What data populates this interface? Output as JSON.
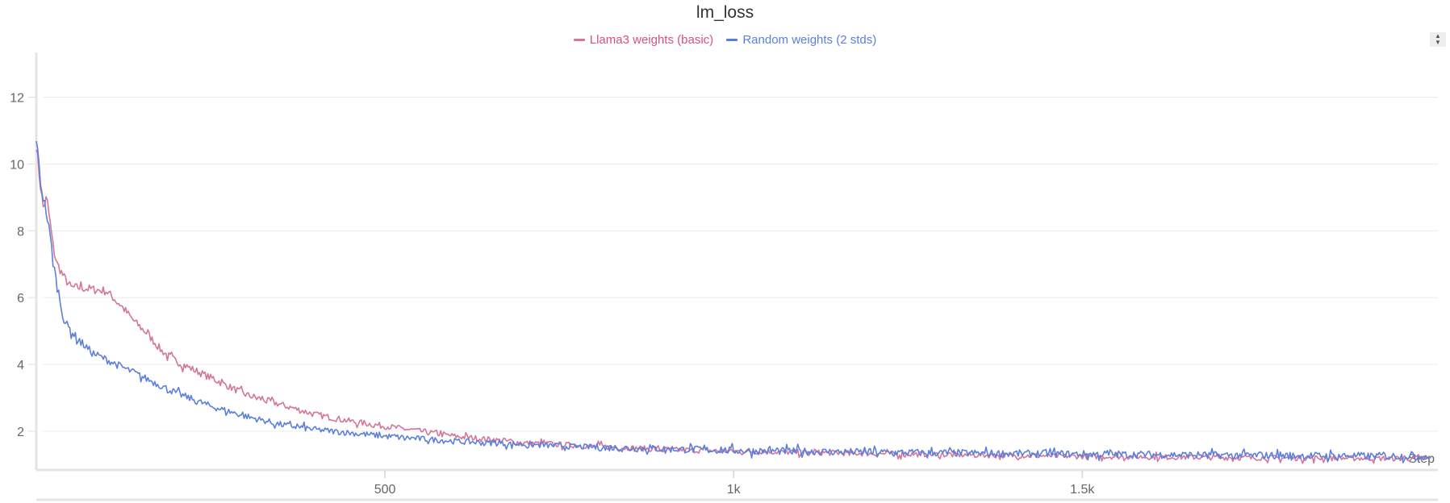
{
  "chart_data": {
    "type": "line",
    "title": "lm_loss",
    "xlabel": "Step",
    "ylabel": "",
    "xlim": [
      0,
      2010
    ],
    "ylim": [
      0.84,
      13.1
    ],
    "x_ticks": [
      500,
      1000,
      1500
    ],
    "x_tick_labels": [
      "500",
      "1k",
      "1.5k"
    ],
    "y_ticks": [
      2,
      4,
      6,
      8,
      10,
      12
    ],
    "y_tick_labels": [
      "2",
      "4",
      "6",
      "8",
      "10",
      "12"
    ],
    "grid": true,
    "legend_placement": "top-center",
    "x": [
      0,
      5,
      10,
      15,
      20,
      25,
      30,
      40,
      50,
      60,
      80,
      100,
      120,
      140,
      160,
      180,
      200,
      250,
      300,
      350,
      400,
      450,
      500,
      600,
      700,
      800,
      900,
      1000,
      1200,
      1400,
      1600,
      1800,
      2000
    ],
    "series": [
      {
        "name": "Llama3 weights (basic)",
        "color": "#d4759a",
        "values": [
          10.6,
          9.5,
          8.7,
          9.0,
          8.2,
          7.4,
          7.0,
          6.6,
          6.3,
          6.3,
          6.25,
          6.2,
          5.8,
          5.3,
          4.9,
          4.4,
          4.1,
          3.6,
          3.1,
          2.8,
          2.5,
          2.3,
          2.15,
          1.85,
          1.65,
          1.55,
          1.45,
          1.4,
          1.33,
          1.27,
          1.23,
          1.2,
          1.18
        ]
      },
      {
        "name": "Random weights (2 stds)",
        "color": "#5b7fdb",
        "values": [
          10.8,
          9.6,
          9.0,
          8.5,
          7.8,
          7.0,
          6.3,
          5.3,
          5.0,
          4.75,
          4.35,
          4.15,
          3.95,
          3.75,
          3.55,
          3.35,
          3.15,
          2.75,
          2.45,
          2.2,
          2.05,
          1.95,
          1.85,
          1.7,
          1.6,
          1.52,
          1.47,
          1.42,
          1.37,
          1.33,
          1.3,
          1.27,
          1.25
        ]
      }
    ]
  },
  "legend_colors": {
    "llama": "#d94f7f",
    "random": "#5b7fdb"
  },
  "stepper_icon": "sort-up-down-icon"
}
